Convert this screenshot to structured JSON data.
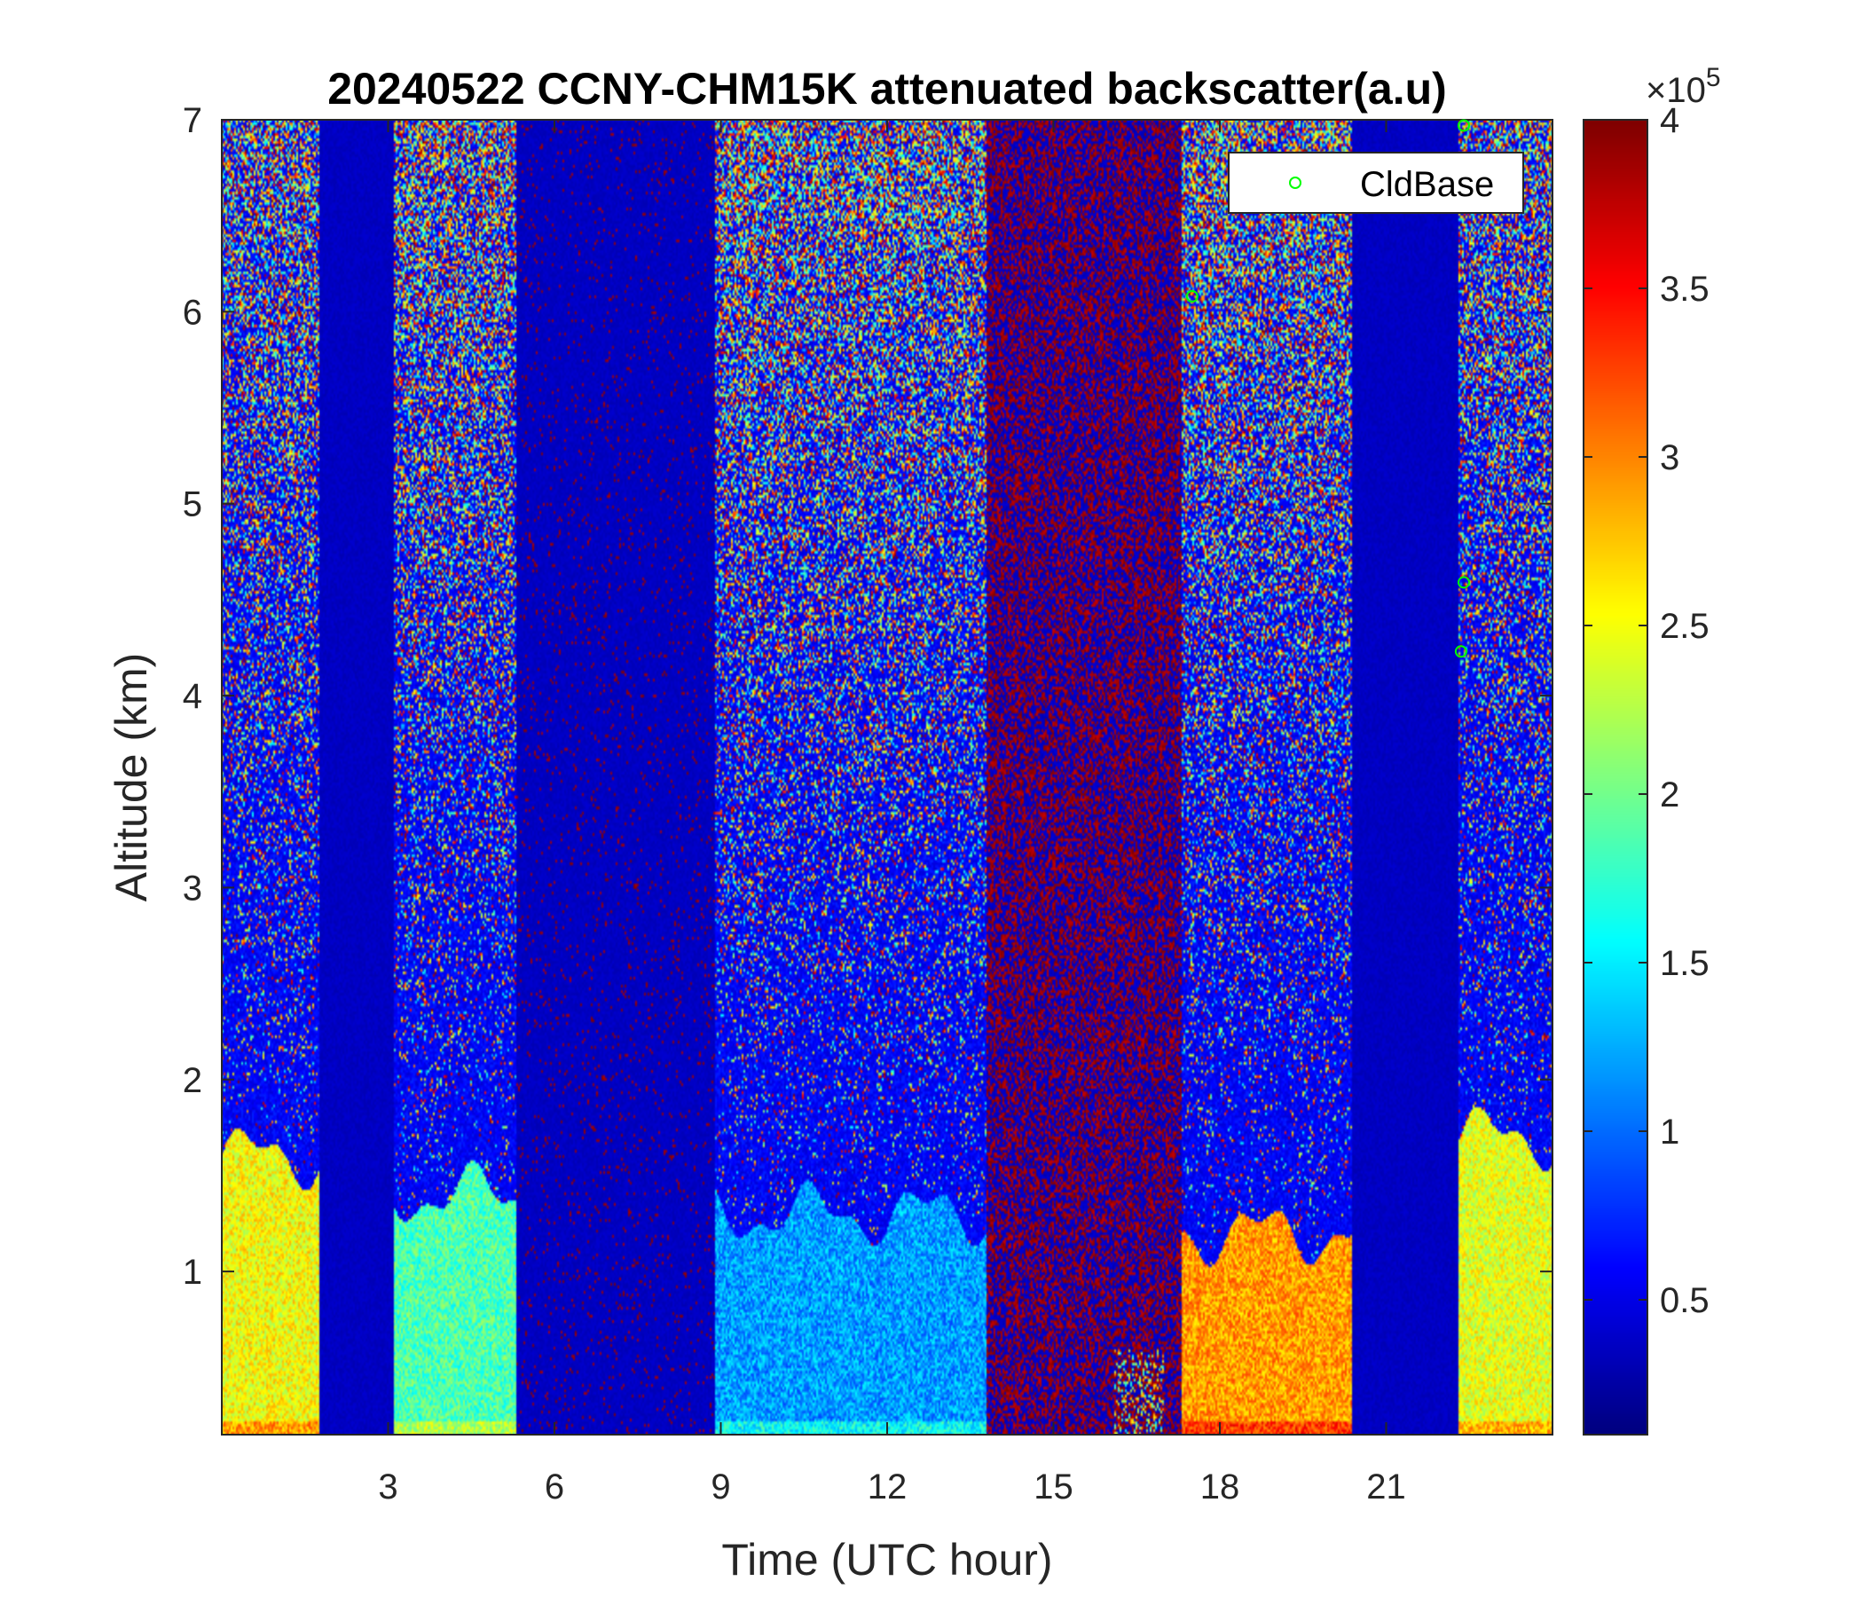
{
  "chart_data": {
    "type": "heatmap",
    "title": "20240522 CCNY-CHM15K attenuated backscatter(a.u)",
    "xlabel": "Time (UTC hour)",
    "ylabel": "Altitude (km)",
    "xlim": [
      0,
      24
    ],
    "ylim": [
      0.15,
      7
    ],
    "xticks": [
      3,
      6,
      9,
      12,
      15,
      18,
      21
    ],
    "yticks": [
      1,
      2,
      3,
      4,
      5,
      6,
      7
    ],
    "colorbar": {
      "colormap": "jet",
      "limits": [
        10000,
        400000
      ],
      "ticks": [
        0.5,
        1,
        1.5,
        2,
        2.5,
        3,
        3.5,
        4
      ],
      "multiplier_base": "×10",
      "multiplier_exp": "5"
    },
    "legend": {
      "position": "top-right",
      "entries": [
        "CldBase"
      ]
    },
    "cloud_base": {
      "name": "CldBase",
      "color": "#00ff00",
      "x": [
        17.5,
        22.4,
        22.4,
        22.35
      ],
      "y": [
        6.08,
        6.97,
        4.59,
        4.23
      ]
    },
    "time_segments": [
      {
        "t0": 0.0,
        "t1": 1.75,
        "state": "valid",
        "pbl_top_km": 1.6,
        "pbl_level": 0.62
      },
      {
        "t0": 1.75,
        "t1": 3.1,
        "state": "missing"
      },
      {
        "t0": 3.1,
        "t1": 5.3,
        "state": "valid",
        "pbl_top_km": 1.4,
        "pbl_level": 0.45
      },
      {
        "t0": 5.3,
        "t1": 8.9,
        "state": "dark",
        "speckle_density": 0.05
      },
      {
        "t0": 8.9,
        "t1": 13.8,
        "state": "valid",
        "pbl_top_km": 1.3,
        "pbl_level": 0.28
      },
      {
        "t0": 13.8,
        "t1": 17.3,
        "state": "noisy",
        "speckle_density": 0.45
      },
      {
        "t0": 17.3,
        "t1": 20.4,
        "state": "valid",
        "pbl_top_km": 1.2,
        "pbl_level": 0.72
      },
      {
        "t0": 20.4,
        "t1": 22.3,
        "state": "missing"
      },
      {
        "t0": 22.3,
        "t1": 24.0,
        "state": "valid",
        "pbl_top_km": 1.7,
        "pbl_level": 0.6
      }
    ]
  }
}
